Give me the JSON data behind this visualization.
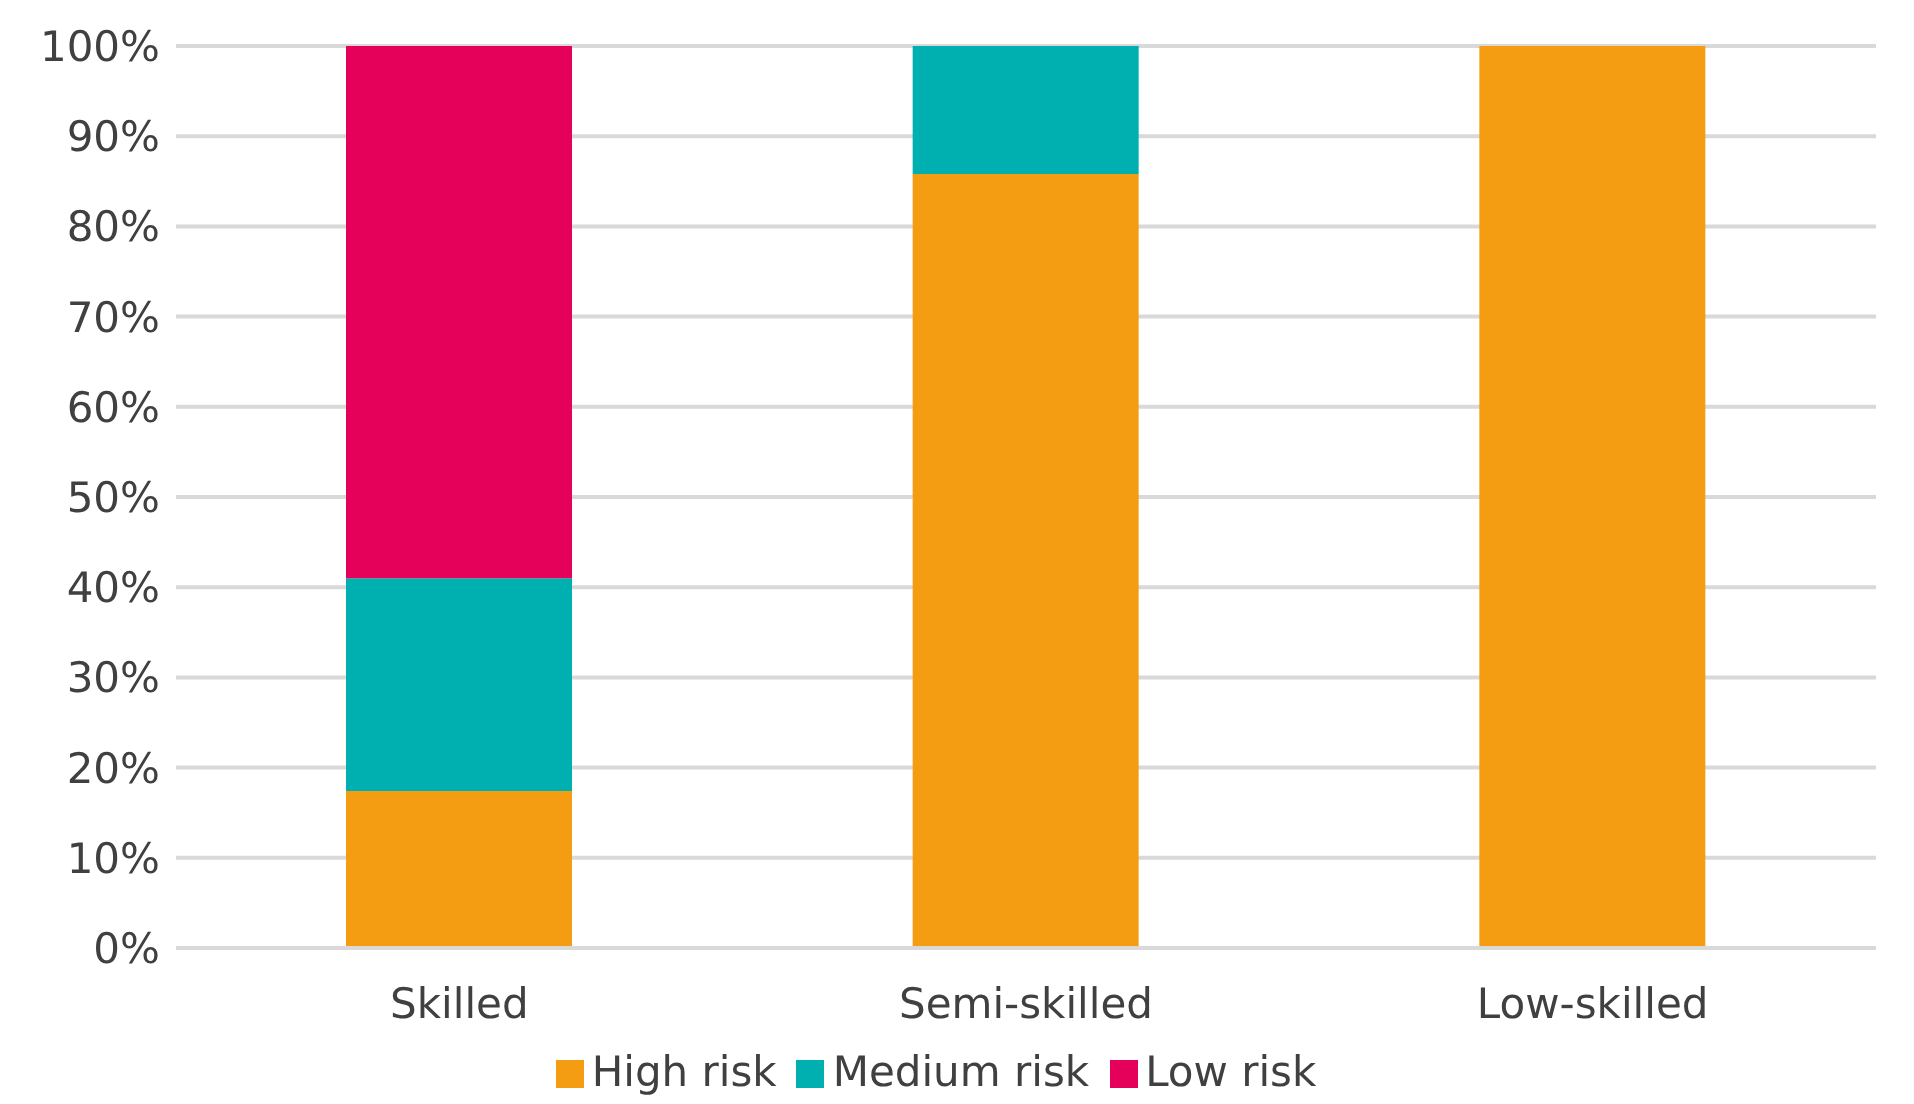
{
  "chart_data": {
    "type": "bar",
    "stacked": true,
    "categories": [
      "Skilled",
      "Semi-skilled",
      "Low-skilled"
    ],
    "series": [
      {
        "name": "High risk",
        "color": "#f49c12",
        "values": [
          17.4,
          85.8,
          100
        ]
      },
      {
        "name": "Medium risk",
        "color": "#00b0b0",
        "values": [
          23.6,
          14.2,
          0
        ]
      },
      {
        "name": "Low risk",
        "color": "#e5005a",
        "values": [
          59,
          0,
          0
        ]
      }
    ],
    "ylim": [
      0,
      100
    ],
    "yticks": [
      {
        "value": 0,
        "label": "0%"
      },
      {
        "value": 10,
        "label": "10%"
      },
      {
        "value": 20,
        "label": "20%"
      },
      {
        "value": 30,
        "label": "30%"
      },
      {
        "value": 40,
        "label": "40%"
      },
      {
        "value": 50,
        "label": "50%"
      },
      {
        "value": 60,
        "label": "60%"
      },
      {
        "value": 70,
        "label": "70%"
      },
      {
        "value": 80,
        "label": "80%"
      },
      {
        "value": 90,
        "label": "90%"
      },
      {
        "value": 100,
        "label": "100%"
      }
    ],
    "grid": "y",
    "legend": "bottom"
  }
}
